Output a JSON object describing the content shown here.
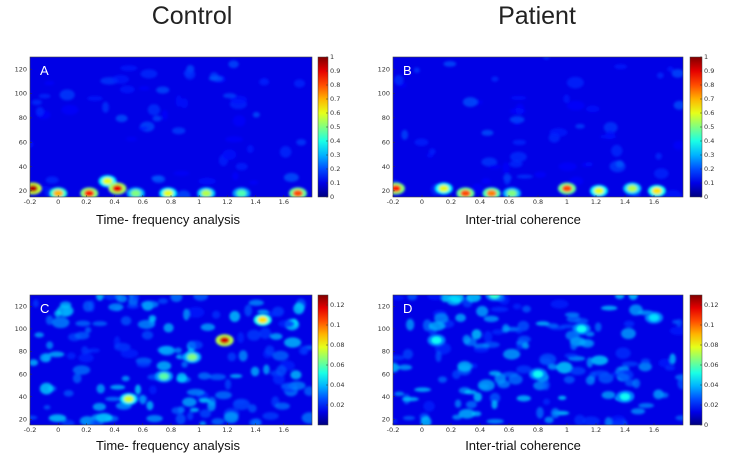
{
  "column_titles": [
    "Control",
    "Patient"
  ],
  "chart_data": [
    {
      "type": "heatmap",
      "panel_label": "A",
      "caption": "Time- frequency analysis",
      "x_ticks": [
        "-0.2",
        "0",
        "0.2",
        "0.4",
        "0.6",
        "0.8",
        "1",
        "1.2",
        "1.4",
        "1.6"
      ],
      "y_ticks": [
        "20",
        "40",
        "60",
        "80",
        "100",
        "120"
      ],
      "colorbar_ticks": [
        "0",
        "0.1",
        "0.2",
        "0.3",
        "0.4",
        "0.5",
        "0.6",
        "0.7",
        "0.8",
        "0.9",
        "1"
      ],
      "xlim": [
        -0.2,
        1.8
      ],
      "ylim": [
        15,
        130
      ],
      "clim": [
        0,
        1
      ],
      "colormap": "jet",
      "features": [
        {
          "x": -0.18,
          "y": 22,
          "intensity": 0.95
        },
        {
          "x": 0.0,
          "y": 18,
          "intensity": 0.7
        },
        {
          "x": 0.22,
          "y": 18,
          "intensity": 0.85
        },
        {
          "x": 0.35,
          "y": 28,
          "intensity": 0.6
        },
        {
          "x": 0.42,
          "y": 22,
          "intensity": 0.9
        },
        {
          "x": 0.55,
          "y": 18,
          "intensity": 0.5
        },
        {
          "x": 0.78,
          "y": 18,
          "intensity": 0.6
        },
        {
          "x": 1.05,
          "y": 18,
          "intensity": 0.55
        },
        {
          "x": 1.3,
          "y": 18,
          "intensity": 0.45
        },
        {
          "x": 1.7,
          "y": 18,
          "intensity": 0.8
        }
      ]
    },
    {
      "type": "heatmap",
      "panel_label": "B",
      "caption": "Inter-trial coherence",
      "x_ticks": [
        "-0.2",
        "0",
        "0.2",
        "0.4",
        "0.6",
        "0.8",
        "1",
        "1.2",
        "1.4",
        "1.6"
      ],
      "y_ticks": [
        "20",
        "40",
        "60",
        "80",
        "100",
        "120"
      ],
      "colorbar_ticks": [
        "0",
        "0.1",
        "0.2",
        "0.3",
        "0.4",
        "0.5",
        "0.6",
        "0.7",
        "0.8",
        "0.9",
        "1"
      ],
      "xlim": [
        -0.2,
        1.8
      ],
      "ylim": [
        15,
        130
      ],
      "clim": [
        0,
        1
      ],
      "colormap": "jet",
      "features": [
        {
          "x": -0.18,
          "y": 22,
          "intensity": 0.85
        },
        {
          "x": 0.15,
          "y": 22,
          "intensity": 0.6
        },
        {
          "x": 0.3,
          "y": 18,
          "intensity": 0.8
        },
        {
          "x": 0.48,
          "y": 18,
          "intensity": 0.75
        },
        {
          "x": 0.62,
          "y": 18,
          "intensity": 0.5
        },
        {
          "x": 1.0,
          "y": 22,
          "intensity": 0.8
        },
        {
          "x": 1.22,
          "y": 20,
          "intensity": 0.6
        },
        {
          "x": 1.45,
          "y": 22,
          "intensity": 0.55
        },
        {
          "x": 1.62,
          "y": 20,
          "intensity": 0.65
        }
      ]
    },
    {
      "type": "heatmap",
      "panel_label": "C",
      "caption": "Time- frequency analysis",
      "x_ticks": [
        "-0.2",
        "0",
        "0.2",
        "0.4",
        "0.6",
        "0.8",
        "1",
        "1.2",
        "1.4",
        "1.6"
      ],
      "y_ticks": [
        "20",
        "40",
        "60",
        "80",
        "100",
        "120"
      ],
      "colorbar_ticks": [
        "0.02",
        "0.04",
        "0.06",
        "0.08",
        "0.1",
        "0.12"
      ],
      "xlim": [
        -0.2,
        1.8
      ],
      "ylim": [
        15,
        130
      ],
      "clim": [
        0,
        0.13
      ],
      "colormap": "jet",
      "features": [
        {
          "x": 0.5,
          "y": 38,
          "intensity": 0.075
        },
        {
          "x": 0.75,
          "y": 58,
          "intensity": 0.06
        },
        {
          "x": 0.95,
          "y": 75,
          "intensity": 0.065
        },
        {
          "x": 1.18,
          "y": 90,
          "intensity": 0.12
        },
        {
          "x": 1.45,
          "y": 108,
          "intensity": 0.085
        }
      ]
    },
    {
      "type": "heatmap",
      "panel_label": "D",
      "caption": "Inter-trial coherence",
      "x_ticks": [
        "-0.2",
        "0",
        "0.2",
        "0.4",
        "0.6",
        "0.8",
        "1",
        "1.2",
        "1.4",
        "1.6"
      ],
      "y_ticks": [
        "20",
        "40",
        "60",
        "80",
        "100",
        "120"
      ],
      "colorbar_ticks": [
        "0",
        "0.02",
        "0.04",
        "0.06",
        "0.08",
        "0.1",
        "0.12"
      ],
      "xlim": [
        -0.2,
        1.8
      ],
      "ylim": [
        15,
        130
      ],
      "clim": [
        0,
        0.13
      ],
      "colormap": "jet",
      "features": [
        {
          "x": 0.1,
          "y": 90,
          "intensity": 0.05
        },
        {
          "x": 0.5,
          "y": 130,
          "intensity": 0.055
        },
        {
          "x": 0.8,
          "y": 60,
          "intensity": 0.05
        },
        {
          "x": 1.1,
          "y": 100,
          "intensity": 0.05
        },
        {
          "x": 1.4,
          "y": 40,
          "intensity": 0.05
        },
        {
          "x": 1.6,
          "y": 110,
          "intensity": 0.045
        }
      ]
    }
  ]
}
